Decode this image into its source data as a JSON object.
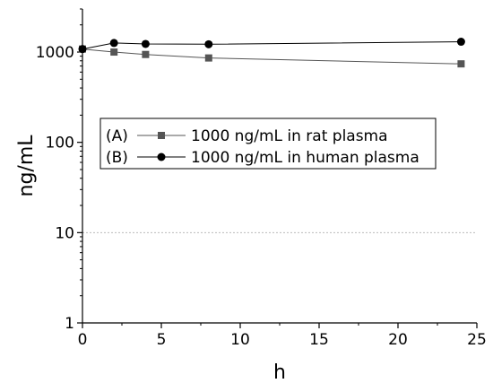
{
  "chart_data": {
    "type": "line",
    "xlabel": "h",
    "ylabel": "ng/mL",
    "xlim": [
      0,
      25
    ],
    "ylim": [
      1,
      3000
    ],
    "y_scale": "log",
    "x_ticks": [
      0,
      5,
      10,
      15,
      20,
      25
    ],
    "y_ticks": [
      1,
      10,
      100,
      1000
    ],
    "grid": "dashed line at 10 only",
    "legend_position": "center-left",
    "series": [
      {
        "label": "(A)",
        "name": "1000 ng/mL in rat plasma",
        "marker": "square",
        "color": "#555555",
        "x": [
          0,
          2,
          4,
          8,
          24
        ],
        "y": [
          1080,
          1000,
          940,
          860,
          740
        ]
      },
      {
        "label": "(B)",
        "name": "1000 ng/mL in human plasma",
        "marker": "circle",
        "color": "#000000",
        "x": [
          0,
          2,
          4,
          8,
          24
        ],
        "y": [
          1080,
          1260,
          1230,
          1220,
          1300
        ]
      }
    ]
  }
}
